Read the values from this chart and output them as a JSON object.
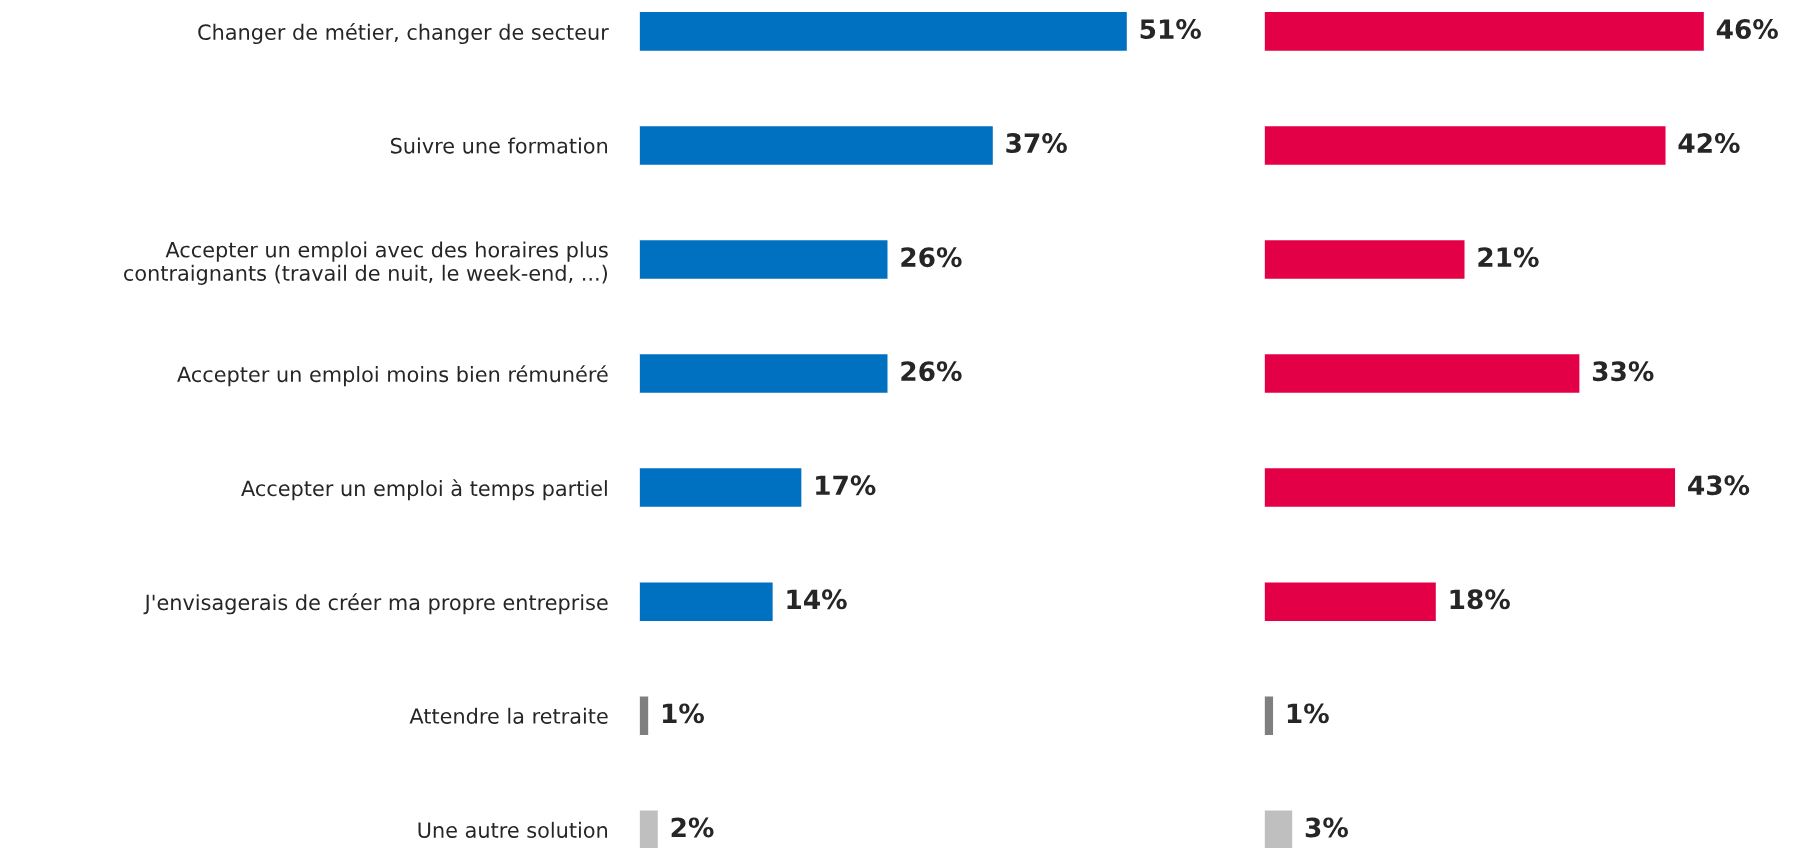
{
  "chart_data": [
    {
      "type": "bar",
      "orientation": "horizontal",
      "categories": [
        "Changer de métier, changer de secteur",
        "Suivre une formation",
        "Accepter un emploi avec des horaires plus\ncontraignants (travail de nuit, le week-end, ...)",
        "Accepter un emploi moins bien rémunéré",
        "Accepter un emploi à temps partiel",
        "J'envisagerais de créer ma propre entreprise",
        "Attendre la retraite",
        "Une autre solution"
      ],
      "values": [
        51,
        37,
        26,
        26,
        17,
        14,
        1,
        2
      ],
      "colors": [
        "#0070c0",
        "#0070c0",
        "#0070c0",
        "#0070c0",
        "#0070c0",
        "#0070c0",
        "#7f7f7f",
        "#bfbfbf"
      ],
      "value_labels": [
        "51%",
        "37%",
        "26%",
        "26%",
        "17%",
        "14%",
        "1%",
        "2%"
      ]
    },
    {
      "type": "bar",
      "orientation": "horizontal",
      "categories": [
        null,
        null,
        null,
        null,
        null,
        null,
        null,
        null
      ],
      "values": [
        46,
        42,
        21,
        33,
        43,
        18,
        1,
        3
      ],
      "colors": [
        "#e40046",
        "#e40046",
        "#e40046",
        "#e40046",
        "#e40046",
        "#e40046",
        "#7f7f7f",
        "#bfbfbf"
      ],
      "value_labels": [
        "46%",
        "42%",
        "21%",
        "33%",
        "43%",
        "18%",
        "1%",
        "3%"
      ]
    }
  ]
}
